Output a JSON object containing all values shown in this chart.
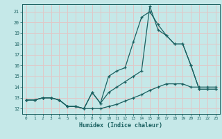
{
  "xlabel": "Humidex (Indice chaleur)",
  "bg_color": "#c5e8e8",
  "grid_color": "#e0c8c8",
  "line_color": "#1a6060",
  "xlim": [
    -0.5,
    23.5
  ],
  "ylim": [
    11.5,
    21.7
  ],
  "xticks": [
    0,
    1,
    2,
    3,
    4,
    5,
    6,
    7,
    8,
    9,
    10,
    11,
    12,
    13,
    14,
    15,
    16,
    17,
    18,
    19,
    20,
    21,
    22,
    23
  ],
  "yticks": [
    12,
    13,
    14,
    15,
    16,
    17,
    18,
    19,
    20,
    21
  ],
  "line1_x": [
    0,
    1,
    2,
    3,
    4,
    5,
    6,
    7,
    8,
    9,
    10,
    11,
    12,
    13,
    14,
    15,
    16,
    17,
    18,
    19,
    20,
    21,
    22,
    23
  ],
  "line1_y": [
    12.8,
    12.8,
    13.0,
    13.0,
    12.8,
    12.2,
    12.2,
    12.0,
    12.0,
    12.0,
    12.2,
    12.4,
    12.7,
    13.0,
    13.3,
    13.7,
    14.0,
    14.3,
    14.3,
    14.3,
    14.0,
    14.0,
    14.0,
    14.0
  ],
  "line2_x": [
    0,
    1,
    2,
    3,
    4,
    5,
    6,
    7,
    8,
    9,
    10,
    11,
    12,
    13,
    14,
    15,
    16,
    17,
    18,
    19,
    20,
    21,
    22,
    23
  ],
  "line2_y": [
    12.8,
    12.8,
    13.0,
    13.0,
    12.8,
    12.2,
    12.2,
    12.0,
    13.5,
    12.5,
    15.0,
    15.5,
    15.8,
    18.2,
    20.5,
    21.0,
    19.8,
    18.8,
    18.0,
    18.0,
    16.0,
    13.8,
    13.8,
    13.8
  ],
  "line3_x": [
    0,
    1,
    2,
    3,
    4,
    5,
    6,
    7,
    8,
    9,
    10,
    11,
    12,
    13,
    14,
    15,
    16,
    17,
    18,
    19,
    20,
    21,
    22,
    23
  ],
  "line3_y": [
    12.8,
    12.8,
    13.0,
    13.0,
    12.8,
    12.2,
    12.2,
    12.0,
    13.5,
    12.5,
    13.5,
    14.0,
    14.5,
    15.0,
    15.5,
    21.5,
    19.3,
    18.8,
    18.0,
    18.0,
    16.0,
    13.8,
    13.8,
    13.8
  ]
}
